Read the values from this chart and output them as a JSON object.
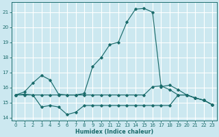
{
  "xlabel": "Humidex (Indice chaleur)",
  "bg_color": "#cce8f0",
  "grid_color": "#ffffff",
  "line_color": "#1a6b6b",
  "xlim": [
    -0.5,
    23.5
  ],
  "ylim": [
    13.8,
    21.65
  ],
  "yticks": [
    14,
    15,
    16,
    17,
    18,
    19,
    20,
    21
  ],
  "xticks": [
    0,
    1,
    2,
    3,
    4,
    5,
    6,
    7,
    8,
    9,
    10,
    11,
    12,
    13,
    14,
    15,
    16,
    17,
    18,
    19,
    20,
    21,
    22,
    23
  ],
  "line_max_x": [
    0,
    1,
    2,
    3,
    4,
    5,
    6,
    7,
    8,
    9,
    10,
    11,
    12,
    13,
    14,
    15,
    16,
    17,
    18,
    19,
    20,
    21,
    22,
    23
  ],
  "line_max_y": [
    15.5,
    15.7,
    16.3,
    16.8,
    16.5,
    15.55,
    15.5,
    15.5,
    15.6,
    17.4,
    18.0,
    18.85,
    19.0,
    20.35,
    21.2,
    21.25,
    21.0,
    16.05,
    16.15,
    15.85,
    15.5,
    15.3,
    15.15,
    14.85
  ],
  "line_mean_x": [
    0,
    1,
    2,
    3,
    4,
    5,
    6,
    7,
    8,
    9,
    10,
    11,
    12,
    13,
    14,
    15,
    16,
    17,
    18,
    19,
    20,
    21,
    22,
    23
  ],
  "line_mean_y": [
    15.5,
    15.55,
    15.5,
    15.5,
    15.5,
    15.5,
    15.5,
    15.5,
    15.5,
    15.5,
    15.5,
    15.5,
    15.5,
    15.5,
    15.5,
    15.5,
    16.05,
    16.1,
    15.85,
    15.5,
    15.5,
    15.3,
    15.15,
    14.85
  ],
  "line_min_x": [
    0,
    1,
    2,
    3,
    4,
    5,
    6,
    7,
    8,
    9,
    10,
    11,
    12,
    13,
    14,
    15,
    16,
    17,
    18,
    19,
    20,
    21,
    22,
    23
  ],
  "line_min_y": [
    15.5,
    15.5,
    15.5,
    14.7,
    14.8,
    14.7,
    14.2,
    14.35,
    14.8,
    14.8,
    14.8,
    14.8,
    14.8,
    14.8,
    14.8,
    14.8,
    14.8,
    14.8,
    14.8,
    15.5,
    15.5,
    15.3,
    15.15,
    14.85
  ]
}
